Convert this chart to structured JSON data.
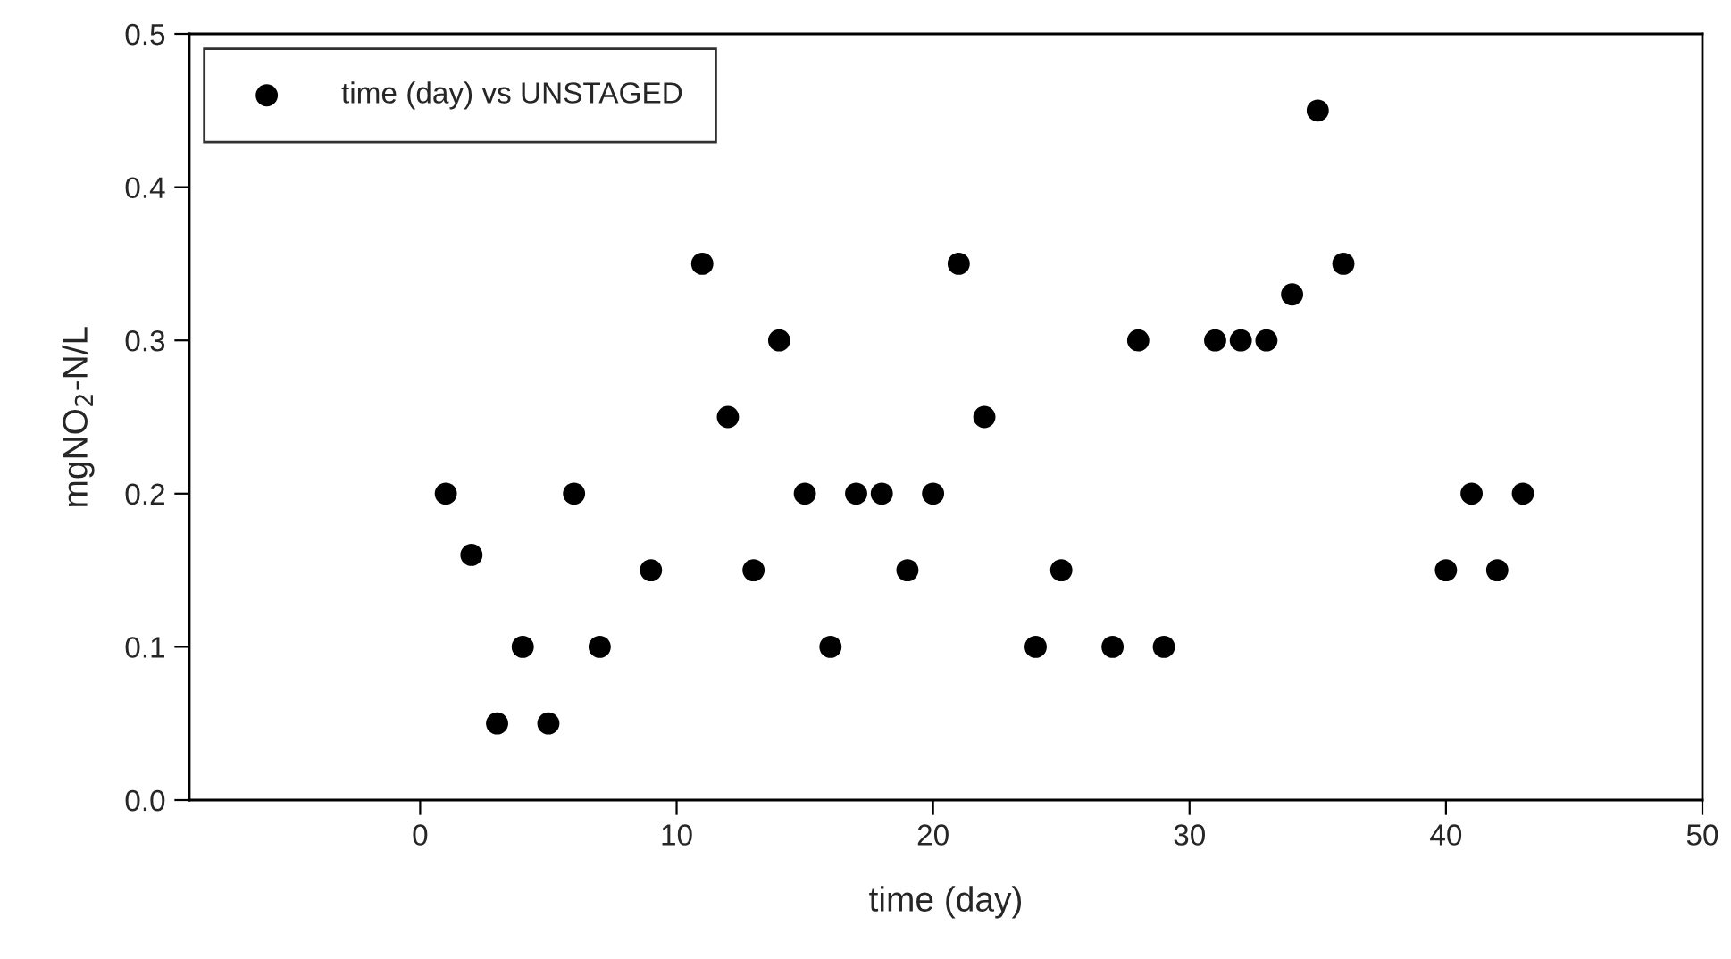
{
  "chart_data": {
    "type": "scatter",
    "xlabel": "time (day)",
    "ylabel": "mgNO$_{2}$-N/L",
    "series": [
      {
        "name": "time (day) vs UNSTAGED",
        "color": "#000000",
        "x": [
          1,
          2,
          3,
          4,
          5,
          6,
          7,
          9,
          11,
          12,
          13,
          14,
          15,
          16,
          17,
          18,
          19,
          20,
          21,
          22,
          24,
          25,
          27,
          28,
          29,
          31,
          32,
          33,
          34,
          35,
          36,
          40,
          41,
          42,
          43
        ],
        "values": [
          0.2,
          0.16,
          0.05,
          0.1,
          0.05,
          0.2,
          0.1,
          0.15,
          0.35,
          0.25,
          0.15,
          0.3,
          0.2,
          0.1,
          0.2,
          0.2,
          0.15,
          0.2,
          0.35,
          0.25,
          0.1,
          0.15,
          0.1,
          0.3,
          0.1,
          0.3,
          0.3,
          0.3,
          0.33,
          0.45,
          0.35,
          0.15,
          0.2,
          0.15,
          0.2
        ]
      }
    ],
    "xlim": [
      -9,
      50
    ],
    "xticks": [
      0,
      10,
      20,
      30,
      40,
      50
    ],
    "ylim": [
      0,
      0.5
    ],
    "yticks": [
      {
        "value": 0,
        "label": "0.0"
      },
      {
        "value": 0.1,
        "label": "0.1"
      },
      {
        "value": 0.2,
        "label": "0.2"
      },
      {
        "value": 0.3,
        "label": "0.3"
      },
      {
        "value": 0.4,
        "label": "0.4"
      },
      {
        "value": 0.5,
        "label": "0.5"
      }
    ],
    "marker": "circle",
    "legend": "top left",
    "grid": false
  }
}
